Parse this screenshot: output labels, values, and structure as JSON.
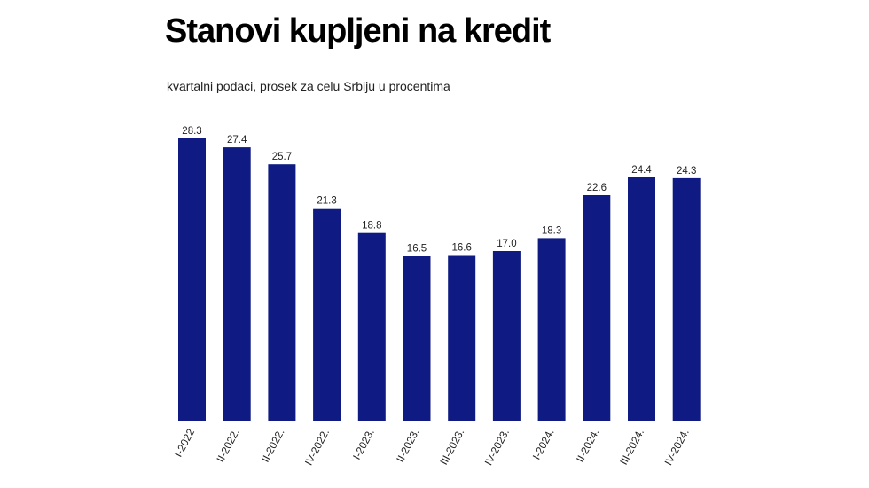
{
  "chart_data": {
    "type": "bar",
    "title": "Stanovi kupljeni na kredit",
    "subtitle": "kvartalni podaci, prosek za celu Srbiju u procentima",
    "categories": [
      "I-2022",
      "II-2022.",
      "II-2022.",
      "IV-2022.",
      "I-2023.",
      "II-2023.",
      "III-2023.",
      "IV-2023.",
      "I-2024.",
      "II-2024.",
      "III-2024.",
      "IV-2024."
    ],
    "values": [
      28.3,
      27.4,
      25.7,
      21.3,
      18.8,
      16.5,
      16.6,
      17.0,
      18.3,
      22.6,
      24.4,
      24.3
    ],
    "value_labels": [
      "28.3",
      "27.4",
      "25.7",
      "21.3",
      "18.8",
      "16.5",
      "16.6",
      "17.0",
      "18.3",
      "22.6",
      "24.4",
      "24.3"
    ],
    "ylim": [
      0,
      28.3
    ],
    "grid": false,
    "legend": "none",
    "bar_color": "#0f1b82"
  }
}
